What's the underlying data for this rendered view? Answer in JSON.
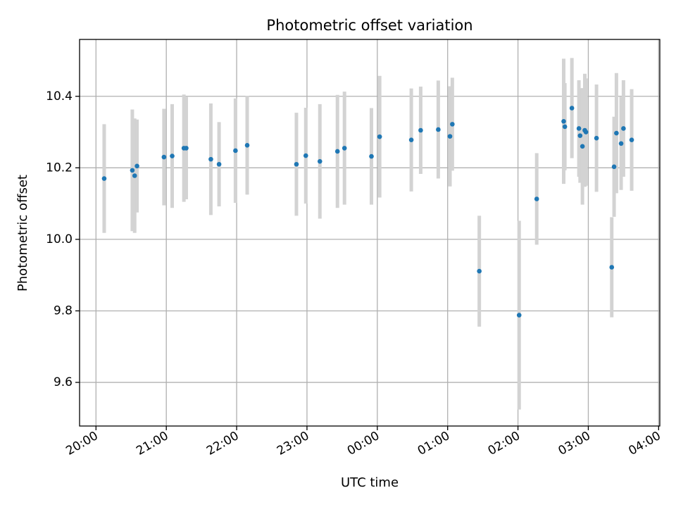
{
  "chart_data": {
    "type": "scatter",
    "title": "Photometric offset variation",
    "xlabel": "UTC time",
    "ylabel": "Photometric offset",
    "xlim": [
      "19:46",
      "04:01"
    ],
    "ylim": [
      9.478,
      10.559
    ],
    "grid": true,
    "x_ticks": [
      "20:00",
      "21:00",
      "22:00",
      "23:00",
      "00:00",
      "01:00",
      "02:00",
      "03:00",
      "04:00"
    ],
    "y_ticks": [
      "9.6",
      "9.8",
      "10.0",
      "10.2",
      "10.4"
    ],
    "y_tick_values": [
      9.6,
      9.8,
      10.0,
      10.2,
      10.4
    ],
    "colors": {
      "points": "#1f77b4",
      "errorbars": "#d3d3d3"
    },
    "series": [
      {
        "x": [
          "20:07",
          "20:31",
          "20:33",
          "20:35",
          "20:58",
          "21:05",
          "21:15",
          "21:17",
          "21:38",
          "21:45",
          "21:59",
          "22:09",
          "22:51",
          "22:59",
          "23:11",
          "23:26",
          "23:32",
          "23:55",
          "00:02",
          "00:29",
          "00:37",
          "00:52",
          "01:02",
          "01:04",
          "01:27",
          "02:01",
          "02:16",
          "02:39",
          "02:40",
          "02:46",
          "02:52",
          "02:53",
          "02:55",
          "02:57",
          "02:58",
          "03:07",
          "03:20",
          "03:22",
          "03:24",
          "03:28",
          "03:30",
          "03:37"
        ],
        "y": [
          10.17,
          10.193,
          10.178,
          10.205,
          10.23,
          10.233,
          10.255,
          10.255,
          10.224,
          10.21,
          10.248,
          10.263,
          10.21,
          10.234,
          10.218,
          10.246,
          10.255,
          10.232,
          10.287,
          10.278,
          10.305,
          10.307,
          10.288,
          10.322,
          9.911,
          9.788,
          10.113,
          10.33,
          10.315,
          10.367,
          10.31,
          10.29,
          10.26,
          10.305,
          10.3,
          10.283,
          9.922,
          10.203,
          10.297,
          10.268,
          10.31,
          10.278
        ],
        "err": [
          0.152,
          0.17,
          0.16,
          0.13,
          0.135,
          0.145,
          0.15,
          0.143,
          0.156,
          0.118,
          0.146,
          0.138,
          0.144,
          0.134,
          0.16,
          0.158,
          0.158,
          0.135,
          0.17,
          0.144,
          0.122,
          0.137,
          0.14,
          0.13,
          0.155,
          0.264,
          0.128,
          0.175,
          0.122,
          0.14,
          0.135,
          0.132,
          0.163,
          0.158,
          0.15,
          0.15,
          0.14,
          0.14,
          0.168,
          0.13,
          0.135,
          0.142
        ]
      }
    ]
  }
}
